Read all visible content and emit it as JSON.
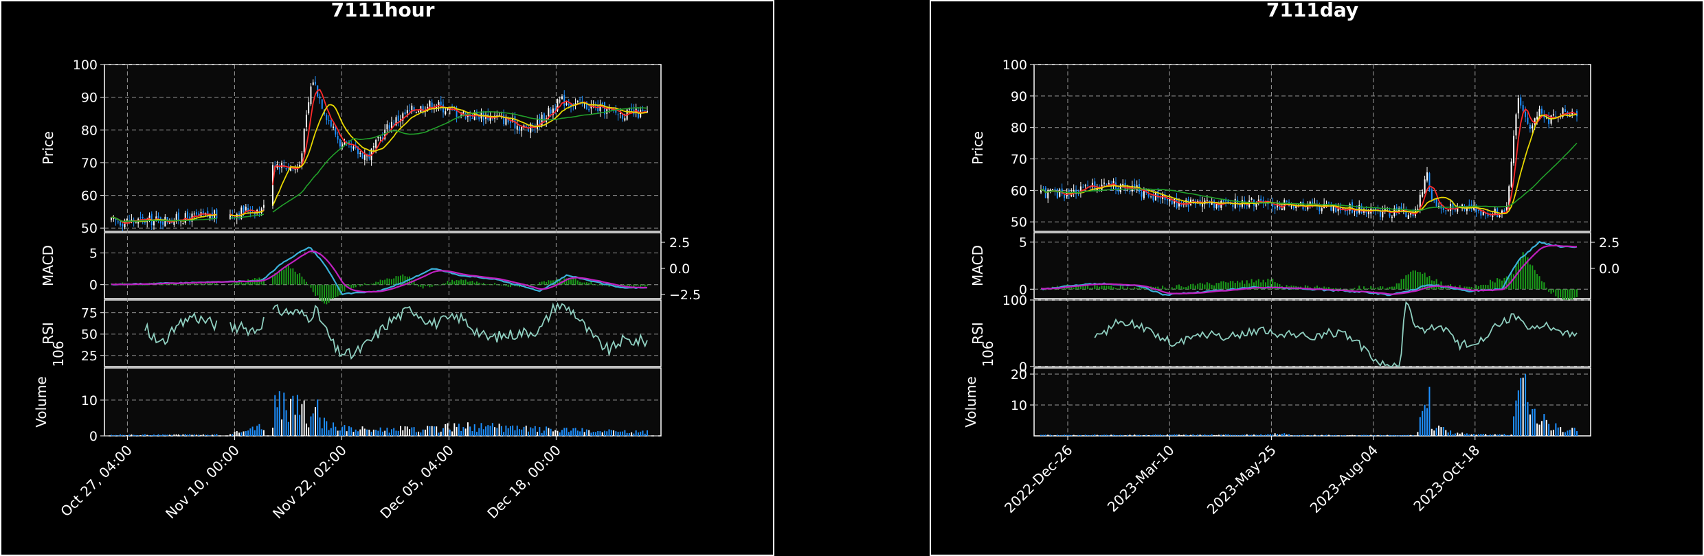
{
  "colors": {
    "background": "#000000",
    "axes_face": "#0a0a0a",
    "grid": "#9a9a9a",
    "text": "#ffffff",
    "up": "#ffffff",
    "down": "#1e90ff",
    "ma_fast": "#ff2a2a",
    "ma_mid": "#e8d800",
    "ma_slow": "#22a02a",
    "macd_line": "#3bb0d8",
    "signal_line": "#c020c0",
    "histogram": "#1a9a1a",
    "rsi": "#8fcfc0"
  },
  "chart_data": [
    {
      "type": "candlestick",
      "title": "7111hour",
      "price_ylabel": "Price",
      "price_ylim": [
        49,
        100
      ],
      "price_ticks": [
        50,
        60,
        70,
        80,
        90,
        100
      ],
      "macd_ylabel": "MACD",
      "macd_ylim": [
        -2.2,
        8.2
      ],
      "macd_left_ticks": [
        0,
        5
      ],
      "macd_right_ticks": [
        "2.5",
        "0.0",
        "−2.5"
      ],
      "rsi_ylabel": "RSI",
      "rsi_ylim": [
        12,
        90
      ],
      "rsi_ticks": [
        25,
        50,
        75
      ],
      "volume_ylabel": "Volume",
      "volume_exponent": "10^6",
      "volume_ylim": [
        0,
        19
      ],
      "volume_ticks": [
        0,
        10
      ],
      "x_tick_labels": [
        "Oct 27, 04:00",
        "Nov 10, 00:00",
        "Nov 22, 02:00",
        "Dec 05, 04:00",
        "Dec 18, 00:00"
      ],
      "x_tick_positions": [
        0.03,
        0.23,
        0.43,
        0.63,
        0.83
      ],
      "n_bars": 240,
      "gaps": [
        [
          0.2,
          0.22
        ],
        [
          0.285,
          0.3
        ]
      ],
      "price_anchors": [
        [
          0,
          52
        ],
        [
          0.1,
          52.5
        ],
        [
          0.2,
          54
        ],
        [
          0.22,
          54
        ],
        [
          0.26,
          56
        ],
        [
          0.28,
          55
        ],
        [
          0.3,
          70
        ],
        [
          0.35,
          68
        ],
        [
          0.375,
          96
        ],
        [
          0.4,
          85
        ],
        [
          0.43,
          75
        ],
        [
          0.48,
          72
        ],
        [
          0.52,
          82
        ],
        [
          0.56,
          86
        ],
        [
          0.6,
          88
        ],
        [
          0.65,
          85
        ],
        [
          0.72,
          84
        ],
        [
          0.78,
          80
        ],
        [
          0.84,
          89
        ],
        [
          0.9,
          87
        ],
        [
          0.95,
          85
        ]
      ],
      "vol_anchors": [
        [
          0,
          0.3
        ],
        [
          0.2,
          0.4
        ],
        [
          0.3,
          3
        ],
        [
          0.31,
          15
        ],
        [
          0.33,
          5
        ],
        [
          0.345,
          13
        ],
        [
          0.37,
          3
        ],
        [
          0.38,
          12
        ],
        [
          0.39,
          4
        ],
        [
          0.45,
          2
        ],
        [
          0.6,
          2
        ],
        [
          0.65,
          3
        ],
        [
          0.8,
          2
        ],
        [
          0.95,
          1.2
        ]
      ],
      "macd_anchors": [
        [
          0,
          0
        ],
        [
          0.28,
          0.6
        ],
        [
          0.32,
          3.5
        ],
        [
          0.37,
          6
        ],
        [
          0.4,
          3
        ],
        [
          0.43,
          -1.5
        ],
        [
          0.5,
          -1
        ],
        [
          0.55,
          0.5
        ],
        [
          0.6,
          2.6
        ],
        [
          0.65,
          1.5
        ],
        [
          0.72,
          0.8
        ],
        [
          0.8,
          -1
        ],
        [
          0.85,
          1.5
        ],
        [
          0.9,
          0.5
        ],
        [
          0.95,
          -0.5
        ]
      ],
      "rsi_anchors": [
        [
          0.06,
          60
        ],
        [
          0.09,
          38
        ],
        [
          0.12,
          55
        ],
        [
          0.15,
          72
        ],
        [
          0.2,
          60
        ],
        [
          0.27,
          55
        ],
        [
          0.3,
          78
        ],
        [
          0.35,
          75
        ],
        [
          0.37,
          70
        ],
        [
          0.38,
          80
        ],
        [
          0.42,
          30
        ],
        [
          0.45,
          25
        ],
        [
          0.48,
          40
        ],
        [
          0.52,
          65
        ],
        [
          0.56,
          80
        ],
        [
          0.6,
          62
        ],
        [
          0.65,
          70
        ],
        [
          0.7,
          45
        ],
        [
          0.75,
          50
        ],
        [
          0.8,
          55
        ],
        [
          0.83,
          85
        ],
        [
          0.86,
          78
        ],
        [
          0.9,
          45
        ],
        [
          0.93,
          30
        ],
        [
          0.95,
          42
        ]
      ],
      "hist_anchors": [
        [
          0,
          0.1
        ],
        [
          0.24,
          0.3
        ],
        [
          0.3,
          1.5
        ],
        [
          0.33,
          3
        ],
        [
          0.36,
          1
        ],
        [
          0.38,
          -1.5
        ],
        [
          0.4,
          -3
        ],
        [
          0.42,
          -2
        ],
        [
          0.44,
          -0.5
        ],
        [
          0.5,
          0.5
        ],
        [
          0.55,
          1.5
        ],
        [
          0.58,
          -0.5
        ],
        [
          0.65,
          0.8
        ],
        [
          0.75,
          -0.3
        ],
        [
          0.8,
          0.2
        ],
        [
          0.85,
          1
        ],
        [
          0.9,
          0.2
        ],
        [
          0.95,
          -0.3
        ]
      ]
    },
    {
      "type": "candlestick",
      "title": "7111day",
      "price_ylabel": "Price",
      "price_ylim": [
        47,
        100
      ],
      "price_ticks": [
        50,
        60,
        70,
        80,
        90,
        100
      ],
      "macd_ylabel": "MACD",
      "macd_ylim": [
        -1,
        6
      ],
      "macd_left_ticks": [
        0,
        5
      ],
      "macd_right_ticks": [
        "2.5",
        "0.0"
      ],
      "rsi_ylabel": "RSI",
      "rsi_ylim": [
        0,
        100
      ],
      "rsi_ticks": [
        0,
        100
      ],
      "volume_ylabel": "Volume",
      "volume_exponent": "10^6",
      "volume_ylim": [
        0,
        22
      ],
      "volume_ticks": [
        10,
        20
      ],
      "x_tick_labels": [
        "2022-Dec-26",
        "2023-Mar-10",
        "2023-May-25",
        "2023-Aug-04",
        "2023-Oct-18"
      ],
      "x_tick_positions": [
        0.05,
        0.24,
        0.43,
        0.62,
        0.81
      ],
      "n_bars": 230,
      "gaps": [],
      "price_anchors": [
        [
          0,
          59
        ],
        [
          0.05,
          59
        ],
        [
          0.12,
          62
        ],
        [
          0.18,
          60
        ],
        [
          0.25,
          56
        ],
        [
          0.35,
          56
        ],
        [
          0.4,
          56
        ],
        [
          0.5,
          55
        ],
        [
          0.6,
          54
        ],
        [
          0.64,
          53
        ],
        [
          0.7,
          53
        ],
        [
          0.72,
          65
        ],
        [
          0.73,
          56
        ],
        [
          0.75,
          54
        ],
        [
          0.8,
          55
        ],
        [
          0.83,
          52
        ],
        [
          0.87,
          54
        ],
        [
          0.89,
          90
        ],
        [
          0.91,
          80
        ],
        [
          0.93,
          86
        ],
        [
          0.95,
          82
        ],
        [
          0.97,
          85
        ]
      ],
      "vol_anchors": [
        [
          0,
          0.3
        ],
        [
          0.42,
          0.4
        ],
        [
          0.45,
          0.8
        ],
        [
          0.47,
          0.3
        ],
        [
          0.7,
          0.2
        ],
        [
          0.72,
          19
        ],
        [
          0.73,
          4
        ],
        [
          0.76,
          1.5
        ],
        [
          0.8,
          0.5
        ],
        [
          0.88,
          0.5
        ],
        [
          0.89,
          20
        ],
        [
          0.91,
          14
        ],
        [
          0.93,
          6
        ],
        [
          0.97,
          2
        ]
      ],
      "macd_anchors": [
        [
          0,
          0
        ],
        [
          0.1,
          0.6
        ],
        [
          0.18,
          0.4
        ],
        [
          0.23,
          -0.6
        ],
        [
          0.3,
          -0.3
        ],
        [
          0.4,
          0.2
        ],
        [
          0.5,
          0
        ],
        [
          0.6,
          -0.3
        ],
        [
          0.65,
          -0.6
        ],
        [
          0.7,
          0
        ],
        [
          0.72,
          0.5
        ],
        [
          0.76,
          0.2
        ],
        [
          0.8,
          -0.2
        ],
        [
          0.86,
          0
        ],
        [
          0.89,
          3
        ],
        [
          0.93,
          5
        ],
        [
          0.97,
          4.5
        ]
      ],
      "rsi_anchors": [
        [
          0.1,
          42
        ],
        [
          0.15,
          70
        ],
        [
          0.2,
          55
        ],
        [
          0.25,
          35
        ],
        [
          0.3,
          50
        ],
        [
          0.35,
          45
        ],
        [
          0.4,
          55
        ],
        [
          0.45,
          50
        ],
        [
          0.5,
          45
        ],
        [
          0.55,
          52
        ],
        [
          0.58,
          45
        ],
        [
          0.6,
          28
        ],
        [
          0.64,
          0
        ],
        [
          0.67,
          0
        ],
        [
          0.68,
          100
        ],
        [
          0.7,
          55
        ],
        [
          0.75,
          58
        ],
        [
          0.78,
          30
        ],
        [
          0.82,
          40
        ],
        [
          0.85,
          60
        ],
        [
          0.88,
          75
        ],
        [
          0.92,
          55
        ],
        [
          0.95,
          62
        ],
        [
          0.97,
          52
        ]
      ],
      "hist_anchors": [
        [
          0,
          0.1
        ],
        [
          0.1,
          0.4
        ],
        [
          0.2,
          0.1
        ],
        [
          0.43,
          1
        ],
        [
          0.45,
          0.2
        ],
        [
          0.65,
          0.1
        ],
        [
          0.7,
          2
        ],
        [
          0.75,
          0.5
        ],
        [
          0.8,
          0.1
        ],
        [
          0.88,
          1.5
        ],
        [
          0.9,
          4
        ],
        [
          0.92,
          2
        ],
        [
          0.95,
          -0.3
        ],
        [
          0.97,
          -1
        ]
      ]
    }
  ]
}
